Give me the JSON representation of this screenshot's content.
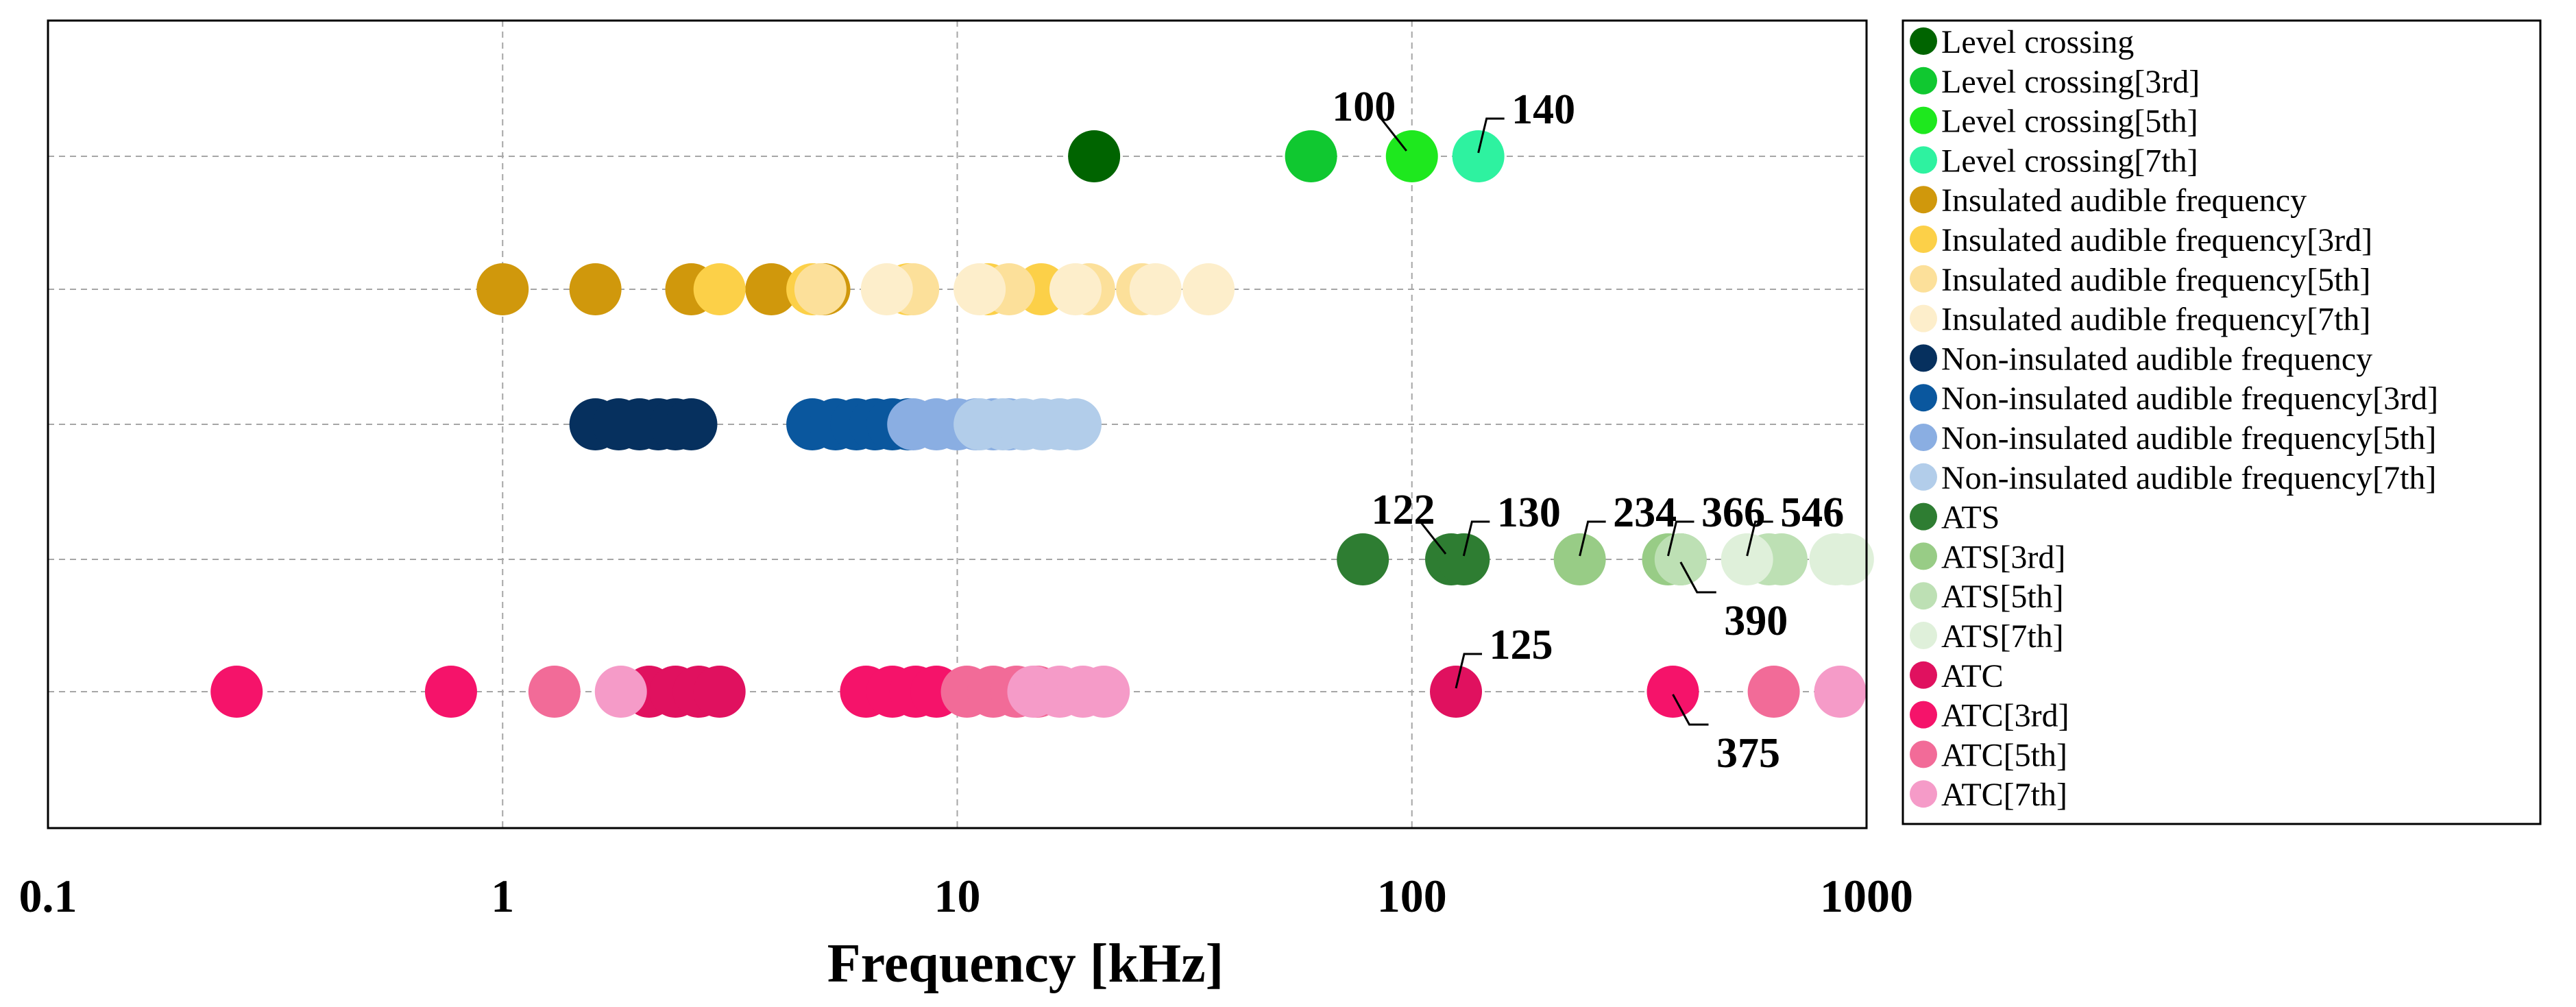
{
  "chart_data": {
    "type": "scatter",
    "title": "",
    "xlabel": "Frequency [kHz]",
    "ylabel": "",
    "xscale": "log",
    "xlim": [
      0.1,
      1000
    ],
    "x_ticks": [
      0.1,
      1,
      10,
      100,
      1000
    ],
    "x_tick_labels": [
      "0.1",
      "1",
      "10",
      "100",
      "1000"
    ],
    "grid": true,
    "legend_position": "right",
    "rows": [
      "Level crossing",
      "Insulated audible frequency",
      "Non-insulated audible frequency",
      "ATS",
      "ATC"
    ],
    "series": [
      {
        "name": "Level crossing",
        "row": 0,
        "color": "#006400",
        "x": [
          20
        ]
      },
      {
        "name": "Level crossing[3rd]",
        "row": 0,
        "color": "#10c830",
        "x": [
          60
        ]
      },
      {
        "name": "Level crossing[5th]",
        "row": 0,
        "color": "#1ee81e",
        "x": [
          100
        ]
      },
      {
        "name": "Level crossing[7th]",
        "row": 0,
        "color": "#2ef2a0",
        "x": [
          140
        ]
      },
      {
        "name": "Insulated audible frequency",
        "row": 1,
        "color": "#d0980c",
        "x": [
          1.0,
          1.6,
          2.6,
          3.9,
          5.1
        ]
      },
      {
        "name": "Insulated audible frequency[3rd]",
        "row": 1,
        "color": "#fcd048",
        "x": [
          3.0,
          4.8,
          7.8,
          11.7,
          15.3
        ]
      },
      {
        "name": "Insulated audible frequency[5th]",
        "row": 1,
        "color": "#fce09a",
        "x": [
          5.0,
          8.0,
          13.0,
          19.5,
          25.5
        ]
      },
      {
        "name": "Insulated audible frequency[7th]",
        "row": 1,
        "color": "#fdeecb",
        "x": [
          7.0,
          11.2,
          18.2,
          27.3,
          35.7
        ]
      },
      {
        "name": "Non-insulated audible frequency",
        "row": 2,
        "color": "#06305e",
        "x": [
          1.6,
          1.8,
          2.0,
          2.2,
          2.4,
          2.6
        ]
      },
      {
        "name": "Non-insulated audible frequency[3rd]",
        "row": 2,
        "color": "#0a579e",
        "x": [
          4.8,
          5.4,
          6.0,
          6.6,
          7.2,
          7.8
        ]
      },
      {
        "name": "Non-insulated audible frequency[5th]",
        "row": 2,
        "color": "#8aaee2",
        "x": [
          8.0,
          9.0,
          10.0,
          11.0,
          12.0,
          13.0
        ]
      },
      {
        "name": "Non-insulated audible frequency[7th]",
        "row": 2,
        "color": "#b2cdea",
        "x": [
          11.2,
          12.6,
          14.0,
          15.4,
          16.8,
          18.2
        ]
      },
      {
        "name": "ATS",
        "row": 3,
        "color": "#2e7d32",
        "x": [
          78,
          122,
          130
        ]
      },
      {
        "name": "ATS[3rd]",
        "row": 3,
        "color": "#98cc86",
        "x": [
          234,
          366,
          390
        ]
      },
      {
        "name": "ATS[5th]",
        "row": 3,
        "color": "#bde0b4",
        "x": [
          390,
          610,
          650
        ]
      },
      {
        "name": "ATS[7th]",
        "row": 3,
        "color": "#dff0da",
        "x": [
          546,
          854,
          910
        ]
      },
      {
        "name": "ATC",
        "row": 4,
        "color": "#e0115f",
        "x": [
          2.1,
          2.4,
          2.7,
          3.0,
          125
        ]
      },
      {
        "name": "ATC[3rd]",
        "row": 4,
        "color": "#f5136a",
        "x": [
          0.26,
          0.77,
          6.3,
          7.2,
          8.1,
          9.0,
          375
        ]
      },
      {
        "name": "ATC[5th]",
        "row": 4,
        "color": "#f26b98",
        "x": [
          1.3,
          10.5,
          12.0,
          13.5,
          15.0,
          625
        ]
      },
      {
        "name": "ATC[7th]",
        "row": 4,
        "color": "#f59bc8",
        "x": [
          1.82,
          14.7,
          16.8,
          18.9,
          21.0,
          875
        ]
      }
    ],
    "annotations": [
      {
        "text": "100",
        "x": 100,
        "row": 0,
        "side": "upper-left"
      },
      {
        "text": "140",
        "x": 140,
        "row": 0,
        "side": "upper-right"
      },
      {
        "text": "122",
        "x": 122,
        "row": 3,
        "side": "upper-left"
      },
      {
        "text": "130",
        "x": 130,
        "row": 3,
        "side": "upper-right"
      },
      {
        "text": "234",
        "x": 234,
        "row": 3,
        "side": "upper-right"
      },
      {
        "text": "366",
        "x": 366,
        "row": 3,
        "side": "upper-right"
      },
      {
        "text": "546",
        "x": 546,
        "row": 3,
        "side": "upper-right"
      },
      {
        "text": "390",
        "x": 390,
        "row": 3,
        "side": "lower-right"
      },
      {
        "text": "125",
        "x": 125,
        "row": 4,
        "side": "upper-right"
      },
      {
        "text": "375",
        "x": 375,
        "row": 4,
        "side": "lower-right"
      }
    ]
  }
}
